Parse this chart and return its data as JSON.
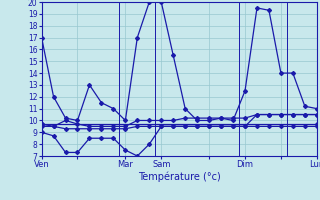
{
  "background_color": "#c8e8ec",
  "grid_color": "#98c8d0",
  "line_color": "#1a1aaa",
  "ylim": [
    7,
    20
  ],
  "yticks": [
    7,
    8,
    9,
    10,
    11,
    12,
    13,
    14,
    15,
    16,
    17,
    18,
    19,
    20
  ],
  "ytick_fontsize": 5.5,
  "xlabel": "Température (°c)",
  "xlabel_fontsize": 7,
  "day_labels": [
    "Ven",
    "",
    "Mar",
    "Sam",
    "",
    "Dim",
    "",
    "Lun"
  ],
  "day_positions": [
    0,
    3,
    7,
    10,
    14,
    17,
    20,
    23
  ],
  "vlines": [
    6.5,
    9.5,
    16.5,
    20.5
  ],
  "series": [
    {
      "x": [
        0,
        1,
        2,
        3,
        4,
        5,
        6,
        7,
        8,
        9,
        10,
        11,
        12,
        13,
        14,
        15,
        16,
        17,
        18,
        19,
        20,
        21,
        22,
        23
      ],
      "y": [
        17,
        12,
        10.2,
        10,
        13,
        11.5,
        11,
        10,
        17,
        20,
        20,
        15.5,
        11,
        10,
        10,
        10.2,
        10,
        12.5,
        19.5,
        19.3,
        14,
        14,
        11.2,
        11
      ]
    },
    {
      "x": [
        0,
        1,
        2,
        3,
        4,
        5,
        6,
        7,
        8,
        9,
        10,
        11,
        12,
        13,
        14,
        15,
        16,
        17,
        18,
        19,
        20,
        21,
        22,
        23
      ],
      "y": [
        9.7,
        9.5,
        10,
        9.7,
        9.5,
        9.5,
        9.5,
        9.5,
        10,
        10,
        10,
        10,
        10.2,
        10.2,
        10.2,
        10.2,
        10.2,
        10.2,
        10.5,
        10.5,
        10.5,
        10.5,
        10.5,
        10.5
      ]
    },
    {
      "x": [
        0,
        1,
        2,
        3,
        4,
        5,
        6,
        7,
        8,
        9,
        10,
        11,
        12,
        13,
        14,
        15,
        16,
        17,
        18,
        19,
        20,
        21,
        22,
        23
      ],
      "y": [
        9.5,
        9.5,
        9.3,
        9.3,
        9.3,
        9.3,
        9.3,
        9.3,
        9.5,
        9.5,
        9.5,
        9.5,
        9.5,
        9.5,
        9.5,
        9.5,
        9.5,
        9.5,
        9.5,
        9.5,
        9.5,
        9.5,
        9.5,
        9.5
      ]
    },
    {
      "x": [
        0,
        1,
        2,
        3,
        4,
        5,
        6,
        7,
        8,
        9,
        10,
        11,
        12,
        13,
        14,
        15,
        16,
        17,
        18,
        19,
        20,
        21,
        22,
        23
      ],
      "y": [
        9.0,
        8.7,
        7.3,
        7.3,
        8.5,
        8.5,
        8.5,
        7.5,
        7.0,
        8.0,
        9.5,
        9.5,
        9.5,
        9.5,
        9.5,
        9.5,
        9.5,
        9.5,
        10.5,
        10.5,
        10.5,
        10.5,
        10.5,
        10.5
      ]
    },
    {
      "x": [
        0,
        23
      ],
      "y": [
        9.7,
        9.7
      ]
    }
  ]
}
